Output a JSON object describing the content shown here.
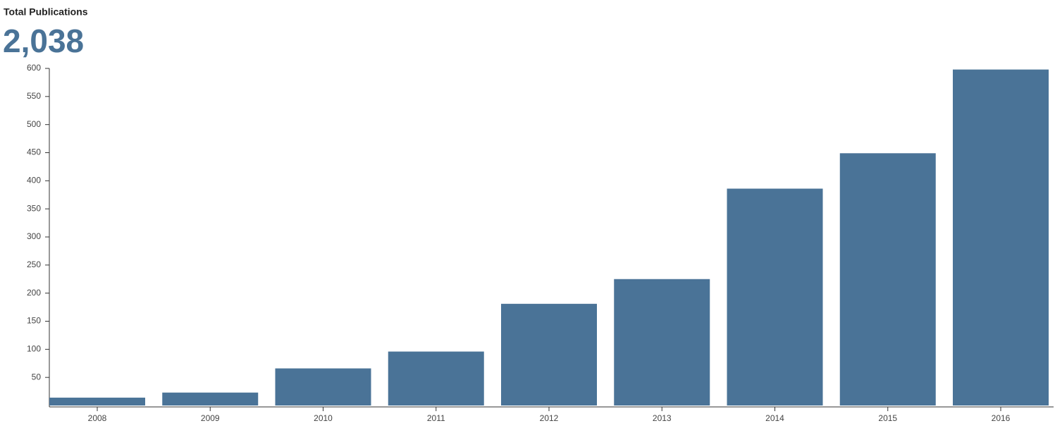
{
  "chart_data": {
    "type": "bar",
    "title": "Total Publications",
    "total": "2,038",
    "categories": [
      "2008",
      "2009",
      "2010",
      "2011",
      "2012",
      "2013",
      "2014",
      "2015",
      "2016"
    ],
    "values": [
      14,
      23,
      66,
      96,
      181,
      225,
      386,
      449,
      598
    ],
    "color": "#4a7397",
    "ylim": [
      0,
      600
    ],
    "yticks": [
      50,
      100,
      150,
      200,
      250,
      300,
      350,
      400,
      450,
      500,
      550,
      600
    ],
    "grid": false
  }
}
